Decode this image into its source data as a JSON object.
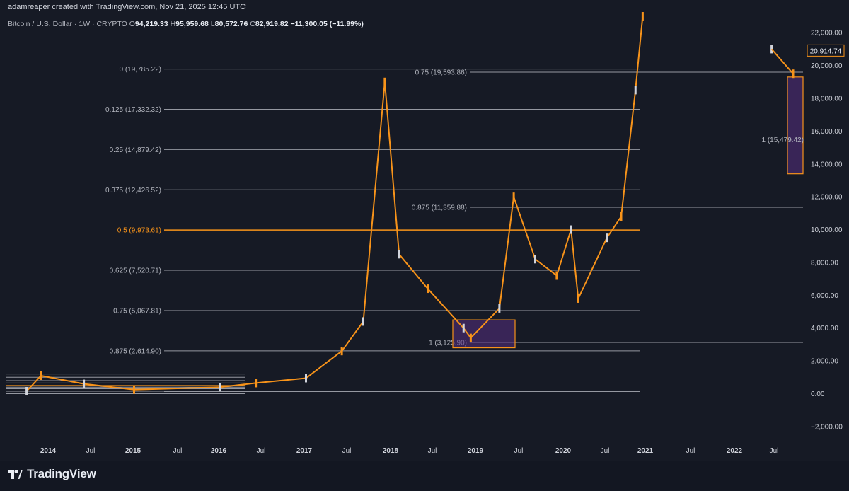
{
  "credit": "adamreaper created with TradingView.com, Nov 21, 2025 12:45 UTC",
  "legend": {
    "symbol": "Bitcoin / U.S. Dollar · 1W · CRYPTO",
    "o_label": "O",
    "o": "94,219.33",
    "h_label": "H",
    "h": "95,959.68",
    "l_label": "L",
    "l": "80,572.76",
    "c_label": "C",
    "c": "82,919.82",
    "change": "−11,300.05 (−11.99%)"
  },
  "brand": {
    "name": "TradingView"
  },
  "colors": {
    "bg": "#161a25",
    "orange": "#f7931a",
    "grey": "#b2b5be",
    "box": "#4a2a6a",
    "white": "#d1d4dc"
  },
  "chart_data": {
    "type": "candlestick",
    "title": "Bitcoin / U.S. Dollar · 1W · CRYPTO",
    "ylim": [
      -3000,
      23000
    ],
    "y_ticks": [
      -2000,
      0,
      2000,
      4000,
      6000,
      8000,
      10000,
      12000,
      14000,
      16000,
      18000,
      20000,
      22000
    ],
    "y_tick_labels": [
      "−2,000.00",
      "0.00",
      "2,000.00",
      "4,000.00",
      "6,000.00",
      "8,000.00",
      "10,000.00",
      "12,000.00",
      "14,000.00",
      "16,000.00",
      "18,000.00",
      "20,000.00",
      "22,000.00"
    ],
    "x_tick_labels": [
      "2014",
      "Jul",
      "2015",
      "Jul",
      "2016",
      "Jul",
      "2017",
      "Jul",
      "2018",
      "Jul",
      "2019",
      "Jul",
      "2020",
      "Jul",
      "2021",
      "Jul",
      "2022",
      "Jul"
    ],
    "price_tag": "20,914.74",
    "fib_levels_main": [
      {
        "label": "0 (19,785.22)",
        "value": 19785.22
      },
      {
        "label": "0.125 (17,332.32)",
        "value": 17332.32
      },
      {
        "label": "0.25 (14,879.42)",
        "value": 14879.42
      },
      {
        "label": "0.375 (12,426.52)",
        "value": 12426.52
      },
      {
        "label": "0.5 (9,973.61)",
        "value": 9973.61,
        "highlight": true
      },
      {
        "label": "0.625 (7,520.71)",
        "value": 7520.71
      },
      {
        "label": "0.75 (5,067.81)",
        "value": 5067.81
      },
      {
        "label": "0.875 (2,614.90)",
        "value": 2614.9
      }
    ],
    "fib_levels_secondary": [
      {
        "label": "0.75 (19,593.86)",
        "value": 19593.86
      },
      {
        "label": "0.875 (11,359.88)",
        "value": 11359.88
      },
      {
        "label": "1 (3,125.90)",
        "value": 3125.9
      }
    ],
    "box_2022_label": "1 (15,479.42)",
    "series": [
      {
        "date": "2013-10",
        "value": 150
      },
      {
        "date": "2013-12",
        "value": 1100
      },
      {
        "date": "2014-06",
        "value": 600
      },
      {
        "date": "2015-01",
        "value": 250
      },
      {
        "date": "2016-01",
        "value": 400
      },
      {
        "date": "2016-06",
        "value": 650
      },
      {
        "date": "2017-01",
        "value": 950
      },
      {
        "date": "2017-06",
        "value": 2600
      },
      {
        "date": "2017-09",
        "value": 4400
      },
      {
        "date": "2017-12",
        "value": 19000
      },
      {
        "date": "2018-02",
        "value": 8500
      },
      {
        "date": "2018-06",
        "value": 6400
      },
      {
        "date": "2018-11",
        "value": 4000
      },
      {
        "date": "2018-12",
        "value": 3400
      },
      {
        "date": "2019-04",
        "value": 5200
      },
      {
        "date": "2019-06",
        "value": 12000
      },
      {
        "date": "2019-09",
        "value": 8200
      },
      {
        "date": "2019-12",
        "value": 7200
      },
      {
        "date": "2020-02",
        "value": 10000
      },
      {
        "date": "2020-03",
        "value": 5800
      },
      {
        "date": "2020-07",
        "value": 9500
      },
      {
        "date": "2020-09",
        "value": 10800
      },
      {
        "date": "2020-11",
        "value": 18500
      },
      {
        "date": "2020-12",
        "value": 23000
      },
      {
        "date": "2022-06",
        "value": 21000
      },
      {
        "date": "2022-09",
        "value": 19500
      }
    ]
  }
}
